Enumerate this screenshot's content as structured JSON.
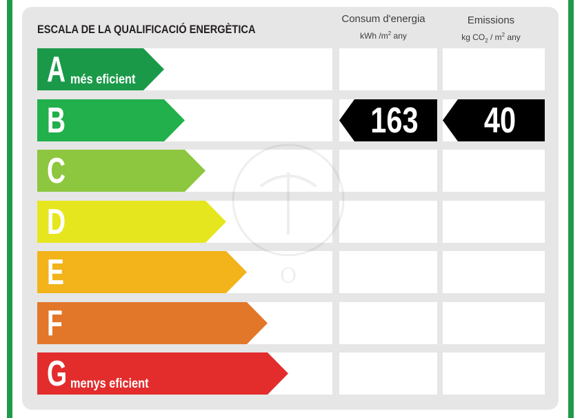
{
  "scale": {
    "title": "ESCALA DE LA QUALIFICACIÓ ENERGÈTICA"
  },
  "columns": {
    "energy": {
      "title": "Consum d'energia",
      "unit_prefix": "kWh /m",
      "unit_exp": "2",
      "unit_suffix": " any"
    },
    "emissions": {
      "title": "Emissions",
      "unit_prefix": "kg CO",
      "unit_sub": "2",
      "unit_mid": " / m",
      "unit_exp": "2",
      "unit_suffix": " any"
    }
  },
  "ratings": [
    {
      "letter": "A",
      "label": "més eficient",
      "color": "#1a9a49",
      "arrow_fraction": 0.43
    },
    {
      "letter": "B",
      "label": "",
      "color": "#21b04b",
      "arrow_fraction": 0.5
    },
    {
      "letter": "C",
      "label": "",
      "color": "#8dc63f",
      "arrow_fraction": 0.57
    },
    {
      "letter": "D",
      "label": "",
      "color": "#e6e61f",
      "arrow_fraction": 0.64
    },
    {
      "letter": "E",
      "label": "",
      "color": "#f2b31b",
      "arrow_fraction": 0.71
    },
    {
      "letter": "F",
      "label": "",
      "color": "#e2772a",
      "arrow_fraction": 0.78
    },
    {
      "letter": "G",
      "label": "menys eficient",
      "color": "#e32c2c",
      "arrow_fraction": 0.85
    }
  ],
  "current": {
    "rating": "B",
    "energy_value": "163",
    "emissions_value": "40"
  }
}
